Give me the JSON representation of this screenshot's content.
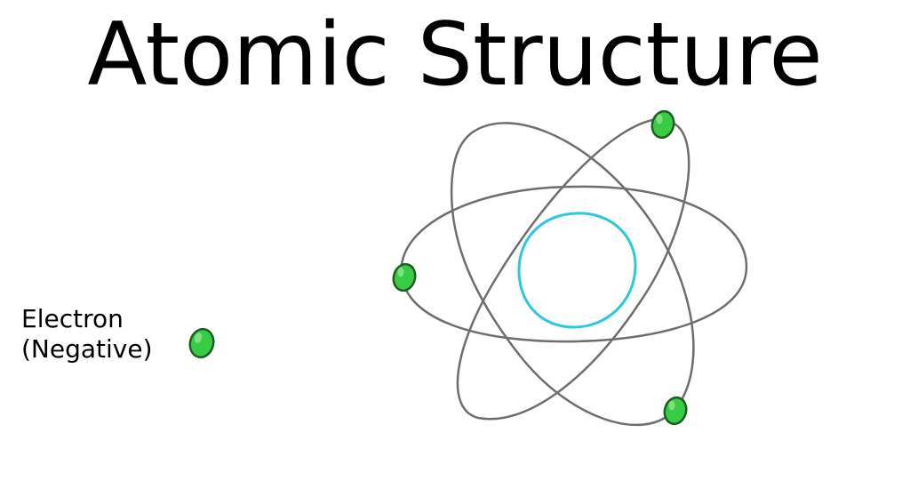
{
  "title": "Atomic Structure",
  "legend": {
    "electron_line1": "Electron",
    "electron_line2": "(Negative)",
    "electron_icon": "electron-icon"
  },
  "diagram": {
    "nucleus_icon": "nucleus-icon",
    "orbit_count": 3,
    "electron_count": 3
  },
  "colors": {
    "orbit": "#6e6e6e",
    "nucleus": "#2cc7e0",
    "electron_fill": "#37cc44",
    "electron_highlight": "#8de68f",
    "electron_outline": "#1e5e22",
    "text": "#000000"
  }
}
